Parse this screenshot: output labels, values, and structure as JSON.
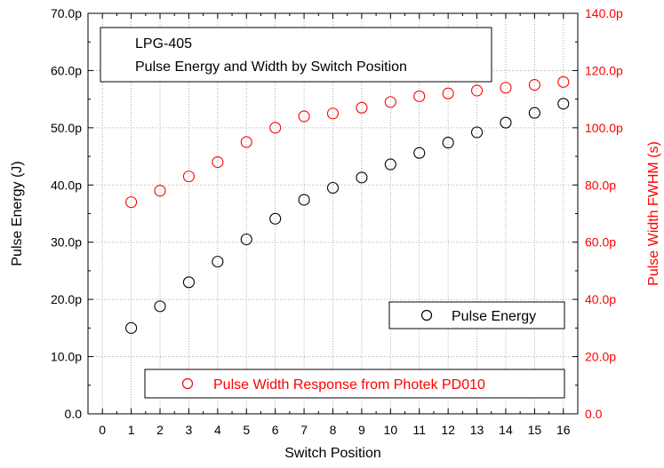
{
  "chart_data": {
    "type": "scatter",
    "annotation": {
      "line1": "LPG-405",
      "line2": "Pulse Energy and Width by Switch Position"
    },
    "xlabel": "Switch Position",
    "ylabel_left": "Pulse Energy (J)",
    "ylabel_right": "Pulse Width FWHM (s)",
    "x_ticks": [
      "0",
      "1",
      "2",
      "3",
      "4",
      "5",
      "6",
      "7",
      "8",
      "9",
      "10",
      "11",
      "12",
      "13",
      "14",
      "15",
      "16"
    ],
    "xlim": [
      -0.5,
      16.5
    ],
    "y_left": {
      "lim": [
        0,
        70
      ],
      "ticks": [
        0,
        10,
        20,
        30,
        40,
        50,
        60,
        70
      ],
      "tick_labels": [
        "0.0",
        "10.0p",
        "20.0p",
        "30.0p",
        "40.0p",
        "50.0p",
        "60.0p",
        "70.0p"
      ]
    },
    "y_right": {
      "lim": [
        0,
        140
      ],
      "ticks": [
        0,
        20,
        40,
        60,
        80,
        100,
        120,
        140
      ],
      "tick_labels": [
        "0.0",
        "20.0p",
        "40.0p",
        "60.0p",
        "80.0p",
        "100.0p",
        "120.0p",
        "140.0p"
      ]
    },
    "grid": true,
    "series": [
      {
        "name": "Pulse Energy",
        "axis": "left",
        "color": "#000000",
        "x": [
          1,
          2,
          3,
          4,
          5,
          6,
          7,
          8,
          9,
          10,
          11,
          12,
          13,
          14,
          15,
          16
        ],
        "values": [
          15.0,
          18.8,
          23.0,
          26.6,
          30.5,
          34.1,
          37.4,
          39.5,
          41.3,
          43.6,
          45.6,
          47.4,
          49.2,
          50.9,
          52.6,
          54.2
        ]
      },
      {
        "name": "Pulse Width Response from Photek PD010",
        "axis": "right",
        "color": "#ff0000",
        "x": [
          1,
          2,
          3,
          4,
          5,
          6,
          7,
          8,
          9,
          10,
          11,
          12,
          13,
          14,
          15,
          16
        ],
        "values": [
          74,
          78,
          83,
          88,
          95,
          100,
          104,
          105,
          107,
          109,
          111,
          112,
          113,
          114,
          115,
          116
        ]
      }
    ],
    "legend": [
      {
        "label": "Pulse Energy",
        "color": "#000000",
        "placement": "lower-right"
      },
      {
        "label": "Pulse Width Response from Photek PD010",
        "color": "#ff0000",
        "placement": "bottom"
      }
    ]
  }
}
